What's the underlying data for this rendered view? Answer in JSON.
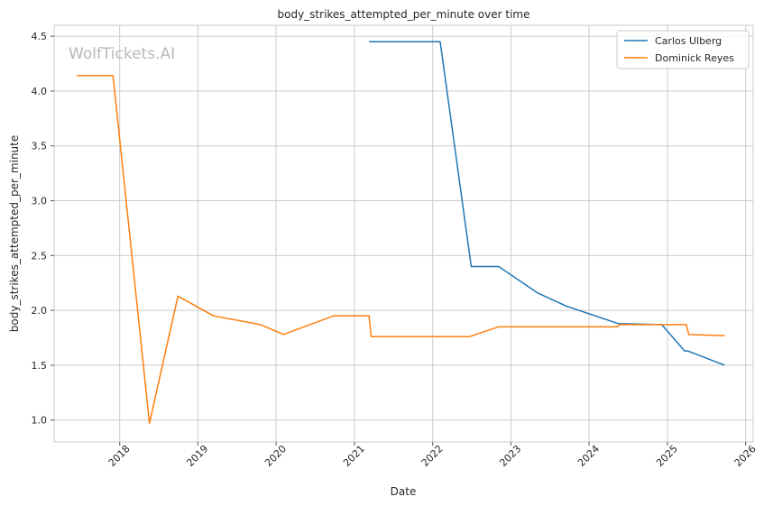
{
  "watermark": "WolfTickets.AI",
  "chart_data": {
    "type": "line",
    "title": "body_strikes_attempted_per_minute over time",
    "xlabel": "Date",
    "ylabel": "body_strikes_attempted_per_minute",
    "xlim": [
      "2017-03-01",
      "2026-02-05"
    ],
    "ylim": [
      0.8,
      4.6
    ],
    "x_ticks": [
      "2018",
      "2019",
      "2020",
      "2021",
      "2022",
      "2023",
      "2024",
      "2025",
      "2026"
    ],
    "y_ticks": [
      "1.0",
      "1.5",
      "2.0",
      "2.5",
      "3.0",
      "3.5",
      "4.0",
      "4.5"
    ],
    "grid": true,
    "legend_position": "top-right",
    "colors": {
      "Carlos Ulberg": "#1f77b4",
      "Dominick Reyes": "#ff7f0e"
    },
    "series": [
      {
        "name": "Carlos Ulberg",
        "points": [
          [
            "2021-03-10",
            4.45
          ],
          [
            "2022-02-05",
            4.45
          ],
          [
            "2022-06-30",
            2.4
          ],
          [
            "2022-11-05",
            2.4
          ],
          [
            "2023-05-05",
            2.16
          ],
          [
            "2023-09-15",
            2.04
          ],
          [
            "2024-05-15",
            1.88
          ],
          [
            "2024-12-05",
            1.87
          ],
          [
            "2025-03-22",
            1.63
          ],
          [
            "2025-04-05",
            1.63
          ],
          [
            "2025-09-25",
            1.5
          ]
        ]
      },
      {
        "name": "Dominick Reyes",
        "points": [
          [
            "2017-06-15",
            4.14
          ],
          [
            "2017-12-01",
            4.14
          ],
          [
            "2018-05-20",
            0.97
          ],
          [
            "2018-09-30",
            2.13
          ],
          [
            "2019-03-15",
            1.95
          ],
          [
            "2019-10-20",
            1.87
          ],
          [
            "2020-02-05",
            1.78
          ],
          [
            "2020-09-25",
            1.95
          ],
          [
            "2021-03-10",
            1.95
          ],
          [
            "2021-03-20",
            1.76
          ],
          [
            "2022-06-20",
            1.76
          ],
          [
            "2022-11-05",
            1.85
          ],
          [
            "2024-05-10",
            1.85
          ],
          [
            "2024-05-25",
            1.87
          ],
          [
            "2025-03-30",
            1.87
          ],
          [
            "2025-04-10",
            1.78
          ],
          [
            "2025-09-25",
            1.77
          ]
        ]
      }
    ]
  }
}
